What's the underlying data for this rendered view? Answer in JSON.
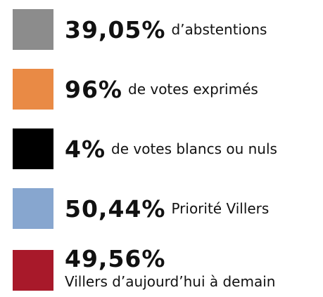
{
  "items": [
    {
      "value": "39,05%",
      "label": "d’abstentions",
      "color": "#8c8c8c"
    },
    {
      "value": "96%",
      "label": "de votes exprimés",
      "color": "#e98a45"
    },
    {
      "value": "4%",
      "label": "de votes blancs ou nuls",
      "color": "#000000"
    },
    {
      "value": "50,44%",
      "label": "Priorité Villers",
      "color": "#87a6cf"
    },
    {
      "value": "49,56%",
      "label": "Villers d’aujourd’hui à demain",
      "color": "#a8192a"
    }
  ]
}
